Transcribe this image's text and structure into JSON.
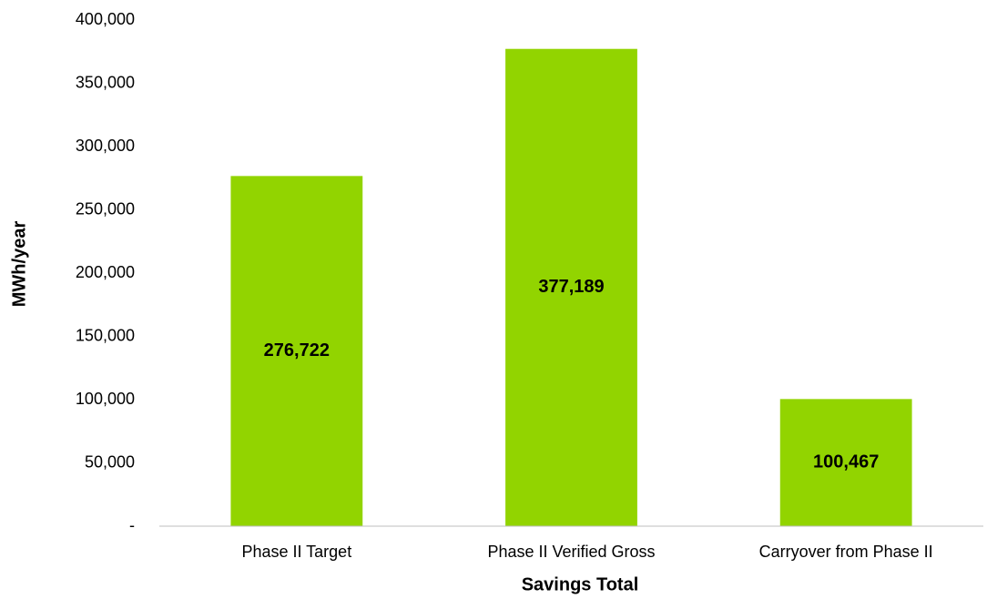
{
  "chart_data": {
    "type": "bar",
    "x_label": "Savings Total",
    "y_label": "MWh/year",
    "categories": [
      "Phase II Target",
      "Phase II Verified Gross",
      "Carryover from Phase II"
    ],
    "values": [
      276722,
      377189,
      100467
    ],
    "value_labels": [
      "276,722",
      "377,189",
      "100,467"
    ],
    "color": "#92d400",
    "ylim": [
      0,
      400000
    ],
    "yticks": [
      {
        "value": 0,
        "label": "-"
      },
      {
        "value": 50000,
        "label": "50,000"
      },
      {
        "value": 100000,
        "label": "100,000"
      },
      {
        "value": 150000,
        "label": "150,000"
      },
      {
        "value": 200000,
        "label": "200,000"
      },
      {
        "value": 250000,
        "label": "250,000"
      },
      {
        "value": 300000,
        "label": "300,000"
      },
      {
        "value": 350000,
        "label": "350,000"
      },
      {
        "value": 400000,
        "label": "400,000"
      }
    ],
    "grid": false
  }
}
